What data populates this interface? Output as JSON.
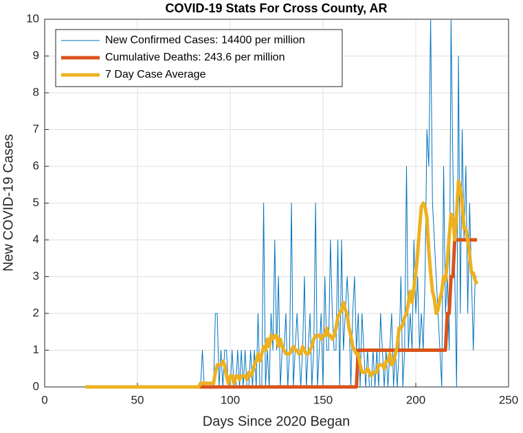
{
  "chart_data": {
    "type": "line",
    "title": "COVID-19 Stats For Cross County, AR",
    "x_label": "Days Since 2020 Began",
    "y_label": "New COVID-19 Cases",
    "xlim": [
      0,
      250
    ],
    "xticks": [
      0,
      50,
      100,
      150,
      200,
      250
    ],
    "ylim": [
      0,
      10
    ],
    "yticks": [
      0,
      1,
      2,
      3,
      4,
      5,
      6,
      7,
      8,
      9,
      10
    ],
    "grid": true,
    "legend": "top-left",
    "x": [
      22,
      23,
      24,
      25,
      26,
      27,
      28,
      29,
      30,
      31,
      32,
      33,
      34,
      35,
      36,
      37,
      38,
      39,
      40,
      41,
      42,
      43,
      44,
      45,
      46,
      47,
      48,
      49,
      50,
      51,
      52,
      53,
      54,
      55,
      56,
      57,
      58,
      59,
      60,
      61,
      62,
      63,
      64,
      65,
      66,
      67,
      68,
      69,
      70,
      71,
      72,
      73,
      74,
      75,
      76,
      77,
      78,
      79,
      80,
      81,
      82,
      83,
      84,
      85,
      86,
      87,
      88,
      89,
      90,
      91,
      92,
      93,
      94,
      95,
      96,
      97,
      98,
      99,
      100,
      101,
      102,
      103,
      104,
      105,
      106,
      107,
      108,
      109,
      110,
      111,
      112,
      113,
      114,
      115,
      116,
      117,
      118,
      119,
      120,
      121,
      122,
      123,
      124,
      125,
      126,
      127,
      128,
      129,
      130,
      131,
      132,
      133,
      134,
      135,
      136,
      137,
      138,
      139,
      140,
      141,
      142,
      143,
      144,
      145,
      146,
      147,
      148,
      149,
      150,
      151,
      152,
      153,
      154,
      155,
      156,
      157,
      158,
      159,
      160,
      161,
      162,
      163,
      164,
      165,
      166,
      167,
      168,
      169,
      170,
      171,
      172,
      173,
      174,
      175,
      176,
      177,
      178,
      179,
      180,
      181,
      182,
      183,
      184,
      185,
      186,
      187,
      188,
      189,
      190,
      191,
      192,
      193,
      194,
      195,
      196,
      197,
      198,
      199,
      200,
      201,
      202,
      203,
      204,
      205,
      206,
      207,
      208,
      209,
      210,
      211,
      212,
      213,
      214,
      215,
      216,
      217,
      218,
      219,
      220,
      221,
      222,
      223,
      224,
      225,
      226,
      227,
      228,
      229,
      230,
      231,
      232,
      233
    ],
    "series": [
      {
        "name": "New Confirmed Cases: 14400 per million",
        "color": "#0072BD",
        "width": 1,
        "values": [
          0,
          0,
          0,
          0,
          0,
          0,
          0,
          0,
          0,
          0,
          0,
          0,
          0,
          0,
          0,
          0,
          0,
          0,
          0,
          0,
          0,
          0,
          0,
          0,
          0,
          0,
          0,
          0,
          0,
          0,
          0,
          0,
          0,
          0,
          0,
          0,
          0,
          0,
          0,
          0,
          0,
          0,
          0,
          0,
          0,
          0,
          0,
          0,
          0,
          0,
          0,
          0,
          0,
          0,
          0,
          0,
          0,
          0,
          0,
          0,
          0,
          0,
          0,
          1,
          0,
          0,
          0,
          0,
          0,
          0,
          2,
          2,
          0,
          1,
          0,
          1,
          1,
          0,
          0,
          1,
          0,
          0,
          1,
          0,
          1,
          0,
          1,
          0,
          0,
          1,
          0,
          1,
          0,
          2,
          0,
          0,
          5,
          0,
          1,
          0,
          2,
          1,
          4,
          1,
          3,
          0,
          1,
          1,
          2,
          0,
          1,
          5,
          0,
          1,
          2,
          1,
          0,
          1,
          3,
          0,
          1,
          2,
          0,
          1,
          5,
          0,
          1,
          2,
          0,
          3,
          1,
          1,
          4,
          2,
          1,
          1,
          4,
          0,
          4,
          1,
          2,
          3,
          2,
          0,
          2,
          3,
          1,
          2,
          0,
          2,
          1,
          0,
          1,
          0,
          0,
          1,
          0,
          1,
          0,
          2,
          1,
          0,
          1,
          0,
          1,
          2,
          0,
          1,
          0,
          1,
          3,
          0,
          1,
          6,
          1,
          2,
          1,
          4,
          2,
          3,
          1,
          2,
          1,
          3,
          7,
          6,
          10,
          5,
          4,
          3,
          2,
          1,
          0,
          6,
          2,
          3,
          1,
          10,
          6,
          3,
          0,
          9,
          2,
          7,
          4,
          6,
          2,
          5,
          3,
          1,
          3,
          3
        ]
      },
      {
        "name": "Cumulative Deaths: 243.6 per million",
        "color": "#D95319",
        "width": 5,
        "values": [
          0,
          0,
          0,
          0,
          0,
          0,
          0,
          0,
          0,
          0,
          0,
          0,
          0,
          0,
          0,
          0,
          0,
          0,
          0,
          0,
          0,
          0,
          0,
          0,
          0,
          0,
          0,
          0,
          0,
          0,
          0,
          0,
          0,
          0,
          0,
          0,
          0,
          0,
          0,
          0,
          0,
          0,
          0,
          0,
          0,
          0,
          0,
          0,
          0,
          0,
          0,
          0,
          0,
          0,
          0,
          0,
          0,
          0,
          0,
          0,
          0,
          0,
          0,
          0,
          0,
          0,
          0,
          0,
          0,
          0,
          0,
          0,
          0,
          0,
          0,
          0,
          0,
          0,
          0,
          0,
          0,
          0,
          0,
          0,
          0,
          0,
          0,
          0,
          0,
          0,
          0,
          0,
          0,
          0,
          0,
          0,
          0,
          0,
          0,
          0,
          0,
          0,
          0,
          0,
          0,
          0,
          0,
          0,
          0,
          0,
          0,
          0,
          0,
          0,
          0,
          0,
          0,
          0,
          0,
          0,
          0,
          0,
          0,
          0,
          0,
          0,
          0,
          0,
          0,
          0,
          0,
          0,
          0,
          0,
          0,
          0,
          0,
          0,
          0,
          0,
          0,
          0,
          0,
          0,
          0,
          0,
          0,
          1,
          1,
          1,
          1,
          1,
          1,
          1,
          1,
          1,
          1,
          1,
          1,
          1,
          1,
          1,
          1,
          1,
          1,
          1,
          1,
          1,
          1,
          1,
          1,
          1,
          1,
          1,
          1,
          1,
          1,
          1,
          1,
          1,
          1,
          1,
          1,
          1,
          1,
          1,
          1,
          1,
          1,
          1,
          1,
          1,
          1,
          1,
          1,
          2,
          2,
          3,
          3,
          4,
          4,
          4,
          4,
          4,
          4,
          4,
          4,
          4,
          4,
          4,
          4,
          4
        ]
      },
      {
        "name": "7 Day Case Average",
        "color": "#EDB120",
        "width": 5,
        "values": [
          0,
          0,
          0,
          0,
          0,
          0,
          0,
          0,
          0,
          0,
          0,
          0,
          0,
          0,
          0,
          0,
          0,
          0,
          0,
          0,
          0,
          0,
          0,
          0,
          0,
          0,
          0,
          0,
          0,
          0,
          0,
          0,
          0,
          0,
          0,
          0,
          0,
          0,
          0,
          0,
          0,
          0,
          0,
          0,
          0,
          0,
          0,
          0,
          0,
          0,
          0,
          0,
          0,
          0,
          0,
          0,
          0,
          0,
          0,
          0,
          0,
          0,
          0.1,
          0.1,
          0.1,
          0.1,
          0.1,
          0.1,
          0.1,
          0.1,
          0.4,
          0.6,
          0.6,
          0.6,
          0.7,
          0.6,
          0.3,
          0.1,
          0.3,
          0.3,
          0.1,
          0.3,
          0.3,
          0.2,
          0.3,
          0.3,
          0.3,
          0.2,
          0.4,
          0.3,
          0.4,
          0.6,
          0.7,
          0.9,
          0.7,
          0.9,
          1.1,
          1.0,
          1.3,
          1.1,
          1.4,
          1.3,
          1.4,
          1.4,
          1.1,
          1.3,
          1.1,
          1.0,
          0.9,
          0.9,
          0.9,
          1.0,
          1.1,
          1.0,
          1.0,
          0.9,
          0.9,
          1.1,
          1.0,
          0.9,
          0.9,
          1.0,
          1.1,
          1.3,
          1.4,
          1.4,
          1.4,
          1.3,
          1.4,
          1.4,
          1.6,
          1.4,
          1.4,
          1.3,
          1.4,
          1.6,
          1.9,
          2.0,
          2.1,
          2.3,
          2.1,
          2.0,
          1.6,
          1.4,
          1.1,
          1.0,
          0.9,
          0.9,
          0.6,
          0.4,
          0.4,
          0.4,
          0.5,
          0.4,
          0.3,
          0.4,
          0.4,
          0.4,
          0.6,
          0.6,
          0.6,
          0.5,
          0.7,
          0.7,
          0.9,
          0.6,
          0.7,
          0.9,
          1.1,
          1.6,
          1.6,
          1.7,
          1.9,
          2.0,
          2.3,
          2.6,
          2.3,
          2.7,
          3.1,
          3.6,
          4.3,
          4.9,
          5.0,
          4.9,
          4.6,
          3.7,
          3.1,
          2.6,
          2.4,
          2.0,
          2.1,
          2.4,
          2.6,
          3.0,
          2.9,
          3.4,
          4.1,
          4.7,
          4.6,
          4.0,
          4.7,
          5.6,
          5.4,
          5.0,
          4.3,
          4.3,
          4.0,
          3.6,
          3.1,
          3.1,
          2.9,
          2.8
        ]
      }
    ]
  }
}
